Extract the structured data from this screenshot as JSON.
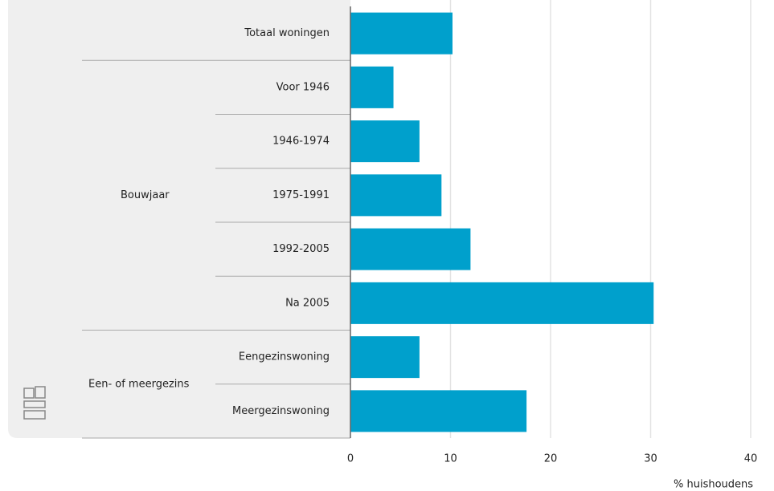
{
  "chart_data": {
    "type": "bar",
    "orientation": "horizontal",
    "categories": [
      "Totaal woningen",
      "Voor 1946",
      "1946-1974",
      "1975-1991",
      "1992-2005",
      "Na 2005",
      "Eengezinswoning",
      "Meergezinswoning"
    ],
    "groups": [
      null,
      "Bouwjaar",
      "Bouwjaar",
      "Bouwjaar",
      "Bouwjaar",
      "Bouwjaar",
      "Een- of meergezins",
      "Een- of meergezins"
    ],
    "values": [
      10.2,
      4.3,
      6.9,
      9.1,
      12.0,
      30.3,
      6.9,
      17.6
    ],
    "color": "#00a0cc",
    "xlim": [
      0,
      40
    ],
    "xticks": [
      0,
      10,
      20,
      30,
      40
    ],
    "grid": true,
    "x_label": "% huishoudens"
  }
}
